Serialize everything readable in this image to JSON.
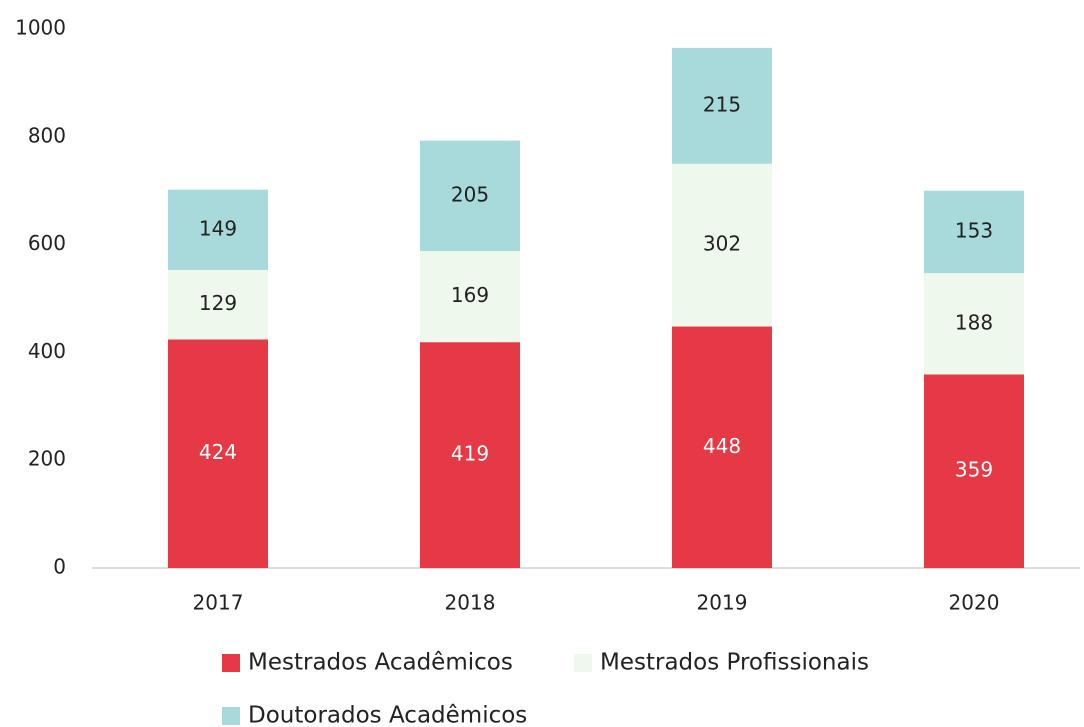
{
  "chart_data": {
    "type": "stacked_bar",
    "categories": [
      "2017",
      "2018",
      "2019",
      "2020"
    ],
    "series": [
      {
        "name": "Mestrados Acadêmicos",
        "color": "#e63946",
        "label_color": "#ffffff",
        "values": [
          424,
          419,
          448,
          359
        ]
      },
      {
        "name": "Mestrados Profissionais",
        "color": "#eff8ec",
        "label_color": "#222222",
        "values": [
          129,
          169,
          302,
          188
        ]
      },
      {
        "name": "Doutorados Acadêmicos",
        "color": "#a8dadc",
        "label_color": "#222222",
        "values": [
          149,
          205,
          215,
          153
        ]
      }
    ],
    "ylim": [
      0,
      1000
    ],
    "yticks": [
      0,
      200,
      400,
      600,
      800,
      1000
    ],
    "grid": false,
    "legend": "bottom"
  }
}
